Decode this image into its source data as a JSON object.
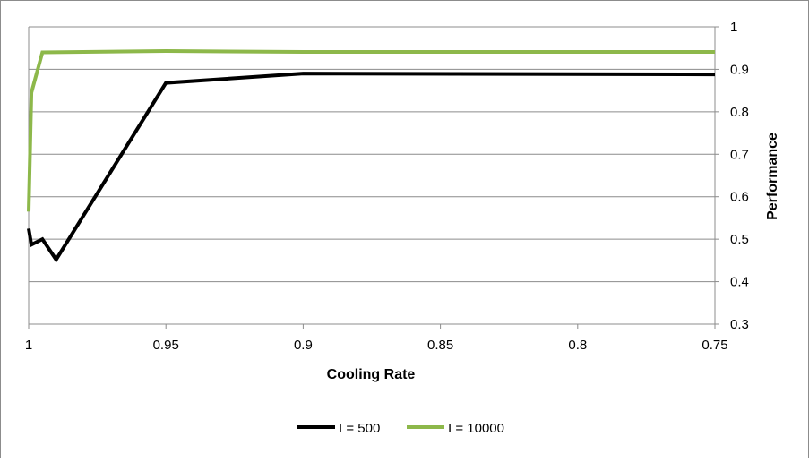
{
  "chart_data": {
    "type": "line",
    "title": "",
    "xlabel": "Cooling Rate",
    "ylabel": "Performance",
    "x_reversed": true,
    "xlim": [
      0.75,
      1
    ],
    "ylim": [
      0.3,
      1
    ],
    "x_ticks": [
      1,
      0.95,
      0.9,
      0.85,
      0.8,
      0.75
    ],
    "x_tick_labels": [
      "1",
      "0.95",
      "0.9",
      "0.85",
      "0.8",
      "0.75"
    ],
    "y_ticks": [
      0.3,
      0.4,
      0.5,
      0.6,
      0.7,
      0.8,
      0.9,
      1
    ],
    "y_tick_labels": [
      "0.3",
      "0.4",
      "0.5",
      "0.6",
      "0.7",
      "0.8",
      "0.9",
      "1"
    ],
    "grid": true,
    "y_axis_side": "right",
    "legend_position": "bottom",
    "series": [
      {
        "name": "I = 500",
        "color": "#000000",
        "points": [
          {
            "x": 1.0,
            "y": 0.525
          },
          {
            "x": 0.999,
            "y": 0.487
          },
          {
            "x": 0.995,
            "y": 0.5
          },
          {
            "x": 0.99,
            "y": 0.452
          },
          {
            "x": 0.95,
            "y": 0.868
          },
          {
            "x": 0.9,
            "y": 0.89
          },
          {
            "x": 0.75,
            "y": 0.888
          }
        ]
      },
      {
        "name": "I = 10000",
        "color": "#8db84a",
        "points": [
          {
            "x": 1.0,
            "y": 0.565
          },
          {
            "x": 0.999,
            "y": 0.845
          },
          {
            "x": 0.995,
            "y": 0.94
          },
          {
            "x": 0.95,
            "y": 0.943
          },
          {
            "x": 0.9,
            "y": 0.941
          },
          {
            "x": 0.75,
            "y": 0.941
          }
        ]
      }
    ]
  }
}
